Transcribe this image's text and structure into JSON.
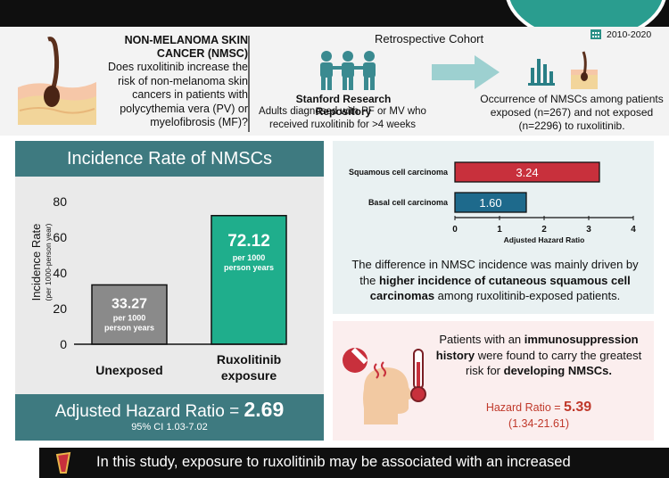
{
  "colors": {
    "teal": "#3e7a80",
    "bar_unexposed": "#8a8a8a",
    "bar_exposed": "#1fae8c",
    "scc_bar": "#c8303c",
    "bcc_bar": "#1e6a8c",
    "dark": "#0f0f0f",
    "accent_red": "#c0392b"
  },
  "header": {
    "nmsc_title": "NON-MELANOMA SKIN CANCER (NMSC)",
    "nmsc_question": "Does ruxolitinib increase the risk of non-melanoma skin cancers in patients with polycythemia vera (PV) or myelofibrosis (MF)?",
    "cohort_title": "Retrospective Cohort",
    "year_range": "2010-2020",
    "repo_title": "Stanford Research Repository",
    "repo_desc": "Adults diagnosed with PF or MV who received ruxolitinib for >4 weeks",
    "outcome_desc": "Occurrence of NMSCs among patients exposed (n=267) and not exposed (n=2296) to ruxolitinib.",
    "icons": [
      "skin-hair-follicle",
      "people-group",
      "right-arrow",
      "bar-chart",
      "calendar"
    ]
  },
  "incidence_panel": {
    "title": "Incidence Rate of NMSCs",
    "hr_label": "Adjusted Hazard Ratio = ",
    "hr_value": "2.69",
    "ci": "95% CI 1.03-7.02"
  },
  "driver_text": {
    "pre": "The difference in NMSC incidence was mainly driven by the ",
    "bold": "higher incidence of cutaneous squamous cell carcinomas",
    "post": " among ruxolitinib-exposed patients."
  },
  "immuno": {
    "pre": "Patients with an ",
    "bold1": "immunosuppression history",
    "mid": " were found to carry the greatest risk for ",
    "bold2": "developing NMSCs.",
    "hr_label": "Hazard Ratio = ",
    "hr_value": "5.39",
    "ci": "(1.34-21.61)",
    "icons": [
      "prohibited-icon",
      "head-fever-icon",
      "thermometer-icon"
    ]
  },
  "conclusion": "In this study, exposure to ruxolitinib may be associated with an increased",
  "chart_data": [
    {
      "type": "bar",
      "ylabel": "Incidence Rate",
      "ylabel_sub": "(per 1000-person year)",
      "ylim": [
        0,
        80
      ],
      "yticks": [
        0,
        20,
        40,
        60,
        80
      ],
      "categories": [
        "Unexposed",
        "Ruxolitinib exposure"
      ],
      "values": [
        33.27,
        72.12
      ],
      "value_labels": [
        "33.27",
        "72.12"
      ],
      "unit_label": "per 1000 person years"
    },
    {
      "type": "bar",
      "orientation": "horizontal",
      "xlabel": "Adjusted Hazard Ratio",
      "xlim": [
        0,
        4
      ],
      "xticks": [
        0,
        1,
        2,
        3,
        4
      ],
      "categories": [
        "Squamous cell carcinoma",
        "Basal cell carcinoma"
      ],
      "values": [
        3.24,
        1.6
      ],
      "value_labels": [
        "3.24",
        "1.60"
      ]
    }
  ]
}
